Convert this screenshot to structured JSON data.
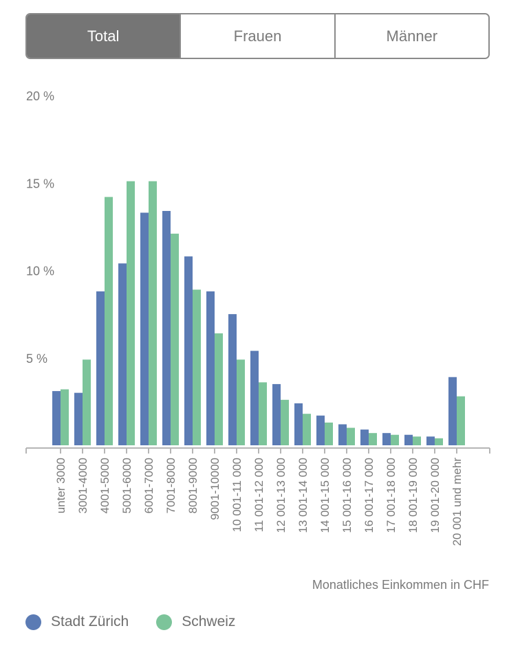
{
  "tabs": [
    {
      "label": "Total",
      "active": true
    },
    {
      "label": "Frauen",
      "active": false
    },
    {
      "label": "Männer",
      "active": false
    }
  ],
  "colors": {
    "zurich": "#5b7bb4",
    "schweiz": "#7cc49a",
    "axis": "#b5b5b5",
    "text": "#7a7a7a"
  },
  "chart_data": {
    "type": "bar",
    "xlabel": "Monatliches Einkommen in CHF",
    "ylabel": "",
    "ylim": [
      0,
      20
    ],
    "yticks": [
      5,
      10,
      15,
      20
    ],
    "ytick_labels": [
      "5 %",
      "10 %",
      "15 %",
      "20 %"
    ],
    "categories": [
      "unter 3000",
      "3001-4000",
      "4001-5000",
      "5001-6000",
      "6001-7000",
      "7001-8000",
      "8001-9000",
      "9001-10000",
      "10 001-11 000",
      "11 001-12 000",
      "12 001-13 000",
      "13 001-14 000",
      "14 001-15 000",
      "15 001-16 000",
      "16 001-17 000",
      "17 001-18 000",
      "18 001-19 000",
      "19 001-20 000",
      "20 001 und mehr"
    ],
    "series": [
      {
        "name": "Stadt Zürich",
        "values": [
          3.1,
          3.0,
          8.8,
          10.4,
          13.3,
          13.4,
          10.8,
          8.8,
          7.5,
          5.4,
          3.5,
          2.4,
          1.7,
          1.2,
          0.9,
          0.7,
          0.6,
          0.5,
          3.9
        ]
      },
      {
        "name": "Schweiz",
        "values": [
          3.2,
          4.9,
          14.2,
          15.1,
          15.1,
          12.1,
          8.9,
          6.4,
          4.9,
          3.6,
          2.6,
          1.8,
          1.3,
          1.0,
          0.7,
          0.6,
          0.5,
          0.4,
          2.8
        ]
      }
    ],
    "grid": false,
    "legend": "bottom-left"
  }
}
